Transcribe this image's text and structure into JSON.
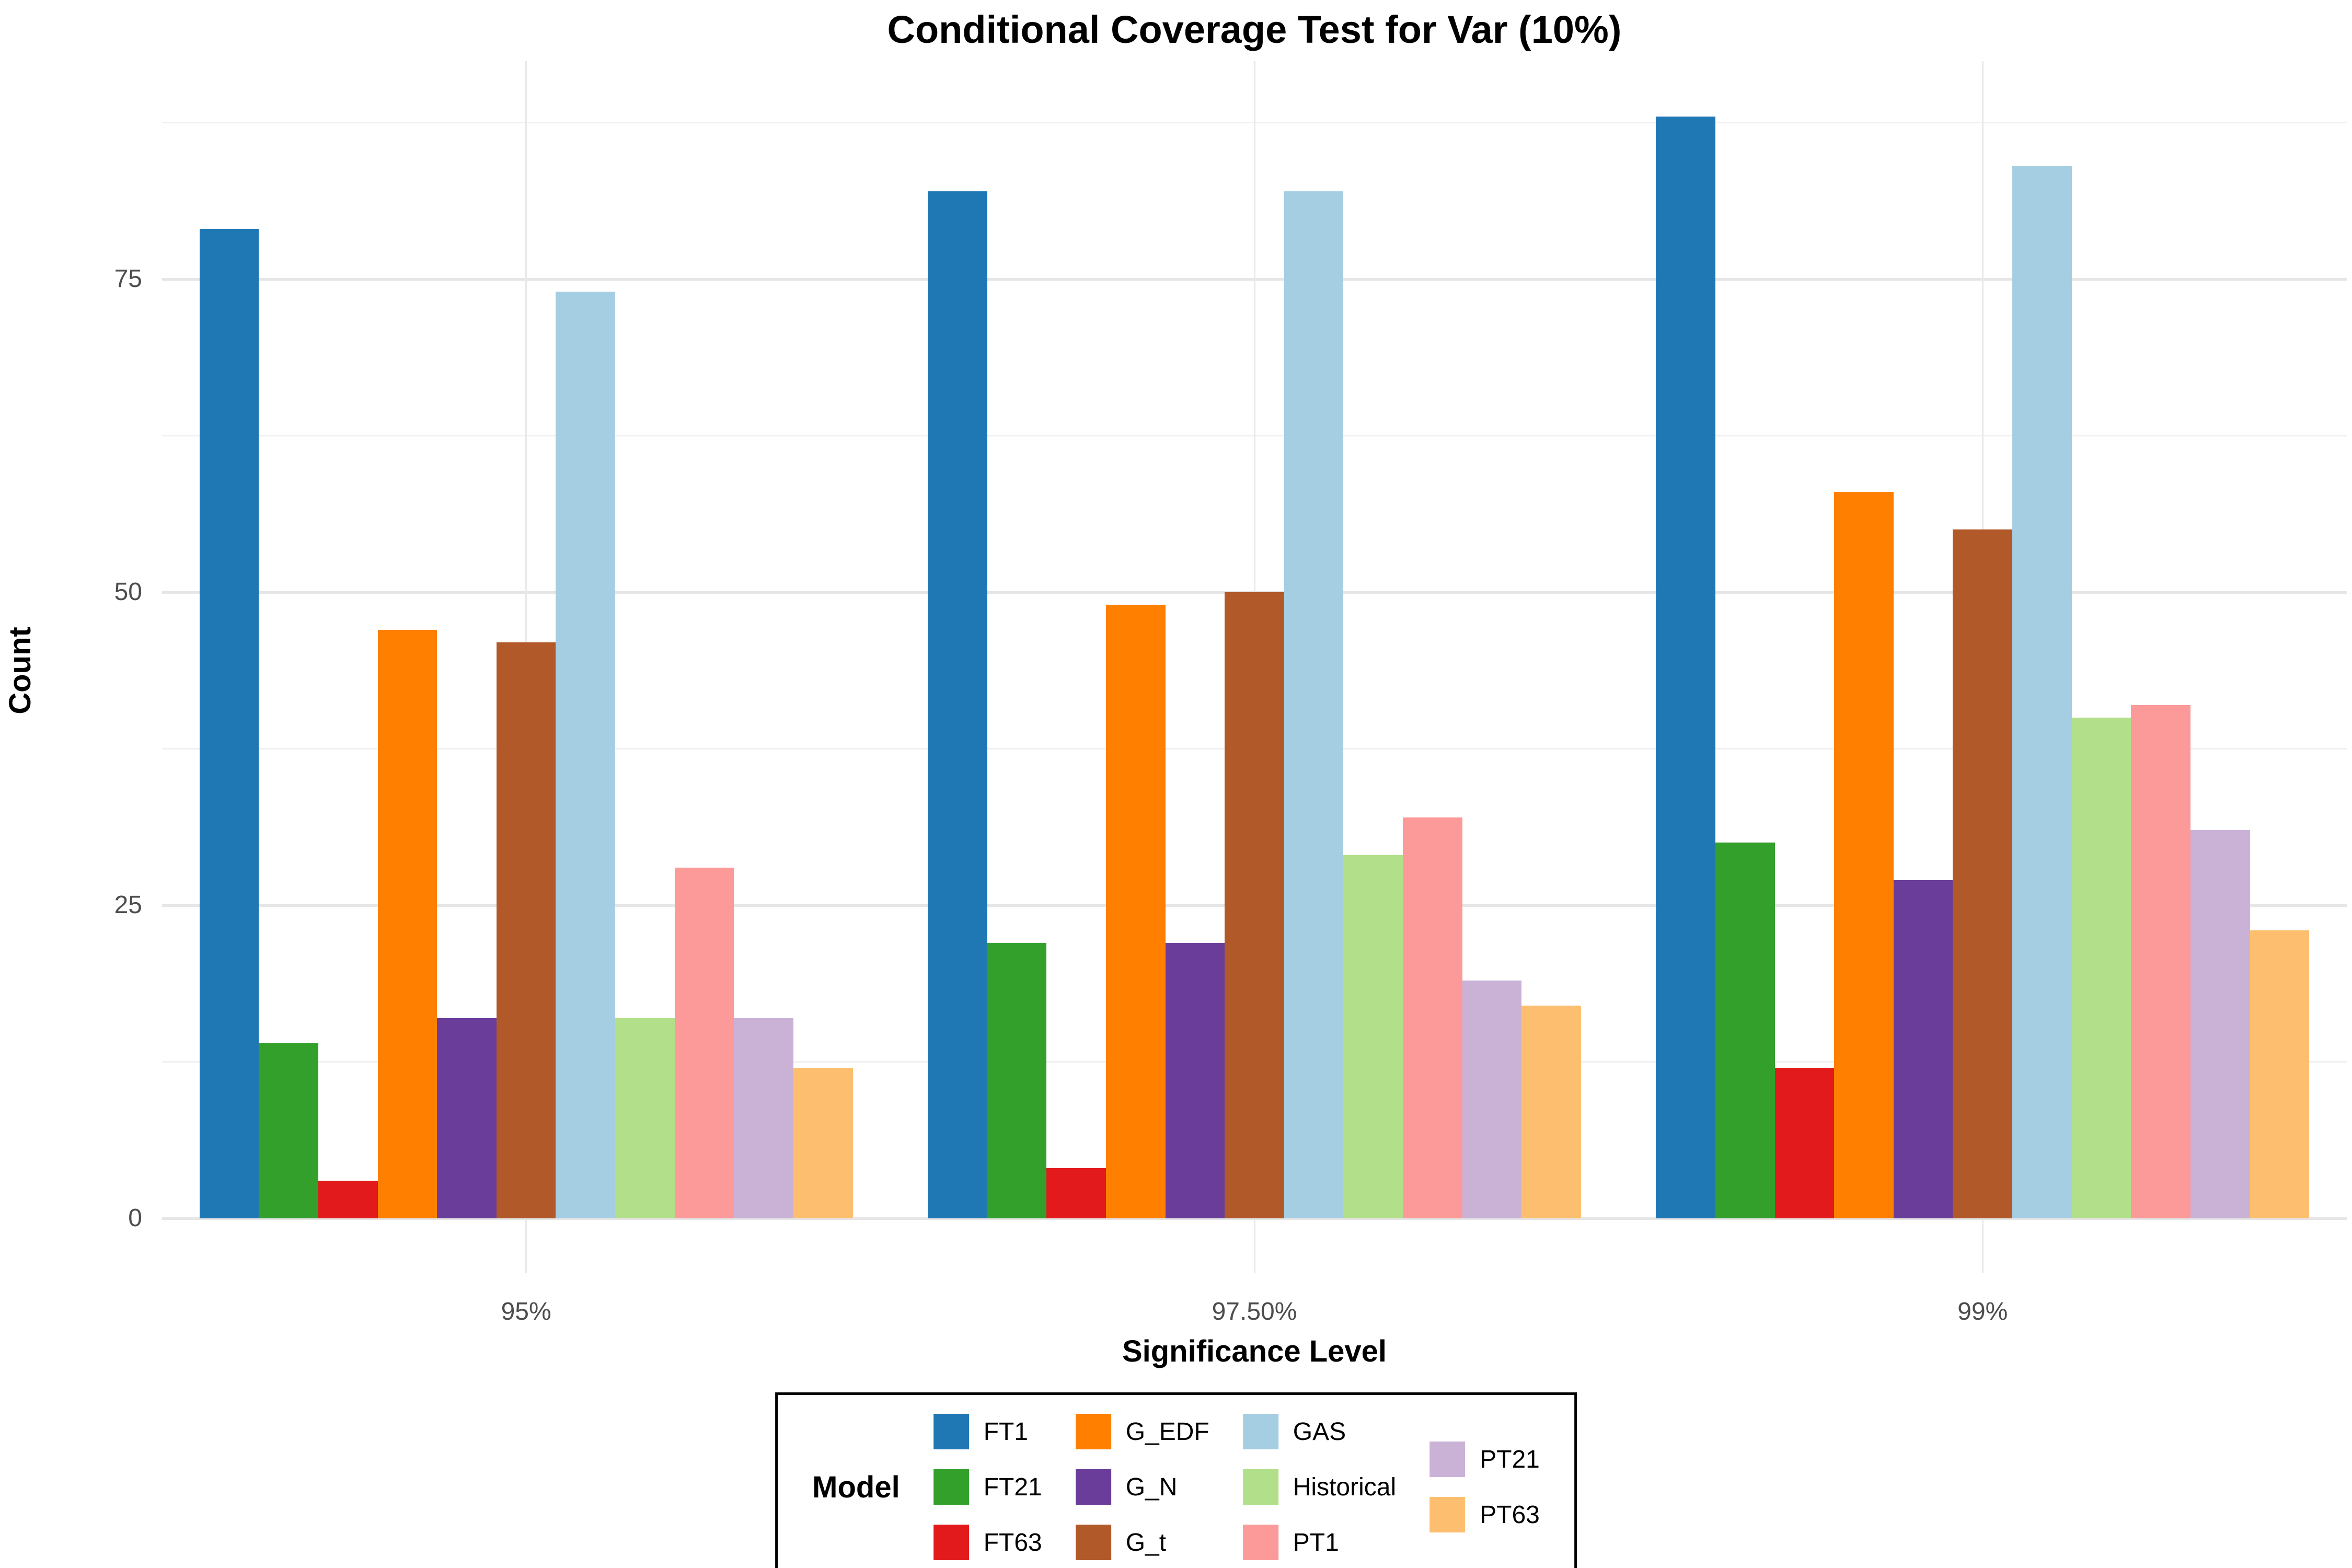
{
  "title": "Conditional Coverage Test for Var (10%)",
  "axes": {
    "x_title": "Significance Level",
    "y_title": "Count",
    "y_tick_labels": [
      "0",
      "25",
      "50",
      "75"
    ],
    "x_tick_labels": [
      "95%",
      "97.50%",
      "99%"
    ]
  },
  "legend": {
    "title": "Model",
    "rows_per_column": 3
  },
  "style_colors": {
    "tick_label": "#4d4d4d",
    "major_grid": "#e6e6e6",
    "minor_grid": "#f0f0f0",
    "legend_border": "#000000"
  },
  "chart_data": {
    "type": "bar",
    "title": "Conditional Coverage Test for Var (10%)",
    "xlabel": "Significance Level",
    "ylabel": "Count",
    "categories": [
      "95%",
      "97.50%",
      "99%"
    ],
    "series": [
      {
        "name": "FT1",
        "color": "#1f78b4",
        "values": [
          79,
          82,
          88
        ]
      },
      {
        "name": "FT21",
        "color": "#33a02c",
        "values": [
          14,
          22,
          30
        ]
      },
      {
        "name": "FT63",
        "color": "#e31a1c",
        "values": [
          3,
          4,
          12
        ]
      },
      {
        "name": "G_EDF",
        "color": "#ff7f00",
        "values": [
          47,
          49,
          58
        ]
      },
      {
        "name": "G_N",
        "color": "#6a3d9a",
        "values": [
          16,
          22,
          27
        ]
      },
      {
        "name": "G_t",
        "color": "#b15928",
        "values": [
          46,
          50,
          55
        ]
      },
      {
        "name": "GAS",
        "color": "#a6cee3",
        "values": [
          74,
          82,
          84
        ]
      },
      {
        "name": "Historical",
        "color": "#b2df8a",
        "values": [
          16,
          29,
          40
        ]
      },
      {
        "name": "PT1",
        "color": "#fb9a99",
        "values": [
          28,
          32,
          41
        ]
      },
      {
        "name": "PT21",
        "color": "#cab2d6",
        "values": [
          16,
          19,
          31
        ]
      },
      {
        "name": "PT63",
        "color": "#fdbf6f",
        "values": [
          12,
          17,
          23
        ]
      }
    ],
    "y_major_ticks": [
      0,
      25,
      50,
      75
    ],
    "y_minor_ticks": [
      12.5,
      37.5,
      62.5,
      87.5
    ],
    "ylim": [
      0,
      92
    ],
    "grid": "major+minor, horizontal gray on white; vertical gridline at each category center",
    "legend_position": "bottom-center, boxed, title left, column-major 3 rows"
  }
}
